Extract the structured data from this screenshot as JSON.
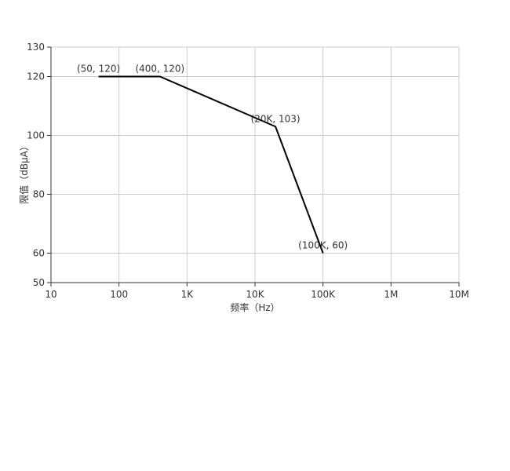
{
  "chart_data": {
    "type": "line",
    "title": "",
    "xlabel": "频率（Hz）",
    "ylabel": "限值（dBμA）",
    "x_scale": "log",
    "xlim": [
      10,
      10000000
    ],
    "ylim": [
      50,
      130
    ],
    "grid": true,
    "x_ticks": [
      {
        "value": 10,
        "label": "10"
      },
      {
        "value": 100,
        "label": "100"
      },
      {
        "value": 1000,
        "label": "1K"
      },
      {
        "value": 10000,
        "label": "10K"
      },
      {
        "value": 100000,
        "label": "100K"
      },
      {
        "value": 1000000,
        "label": "1M"
      },
      {
        "value": 10000000,
        "label": "10M"
      }
    ],
    "y_ticks": [
      {
        "value": 50,
        "label": "50"
      },
      {
        "value": 60,
        "label": "60"
      },
      {
        "value": 80,
        "label": "80"
      },
      {
        "value": 100,
        "label": "100"
      },
      {
        "value": 120,
        "label": "120"
      },
      {
        "value": 130,
        "label": "130"
      }
    ],
    "series": [
      {
        "points": [
          {
            "x": 50,
            "y": 120,
            "label": "(50, 120)"
          },
          {
            "x": 400,
            "y": 120,
            "label": "(400, 120)"
          },
          {
            "x": 20000,
            "y": 103,
            "label": "(20K, 103)"
          },
          {
            "x": 100000,
            "y": 60,
            "label": "(100K, 60)"
          }
        ]
      }
    ],
    "colors": {
      "line": "#000000",
      "grid": "#cccccc",
      "axis": "#333333"
    }
  }
}
